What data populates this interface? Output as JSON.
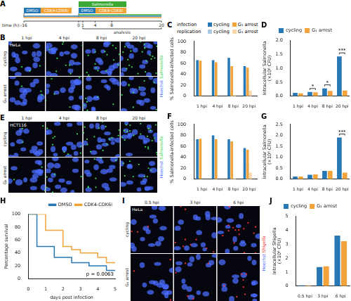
{
  "timeline": {
    "letter": "A",
    "label": "time (h):",
    "ticks": [
      -16,
      0,
      1,
      4,
      8,
      20
    ],
    "treatments": [
      {
        "name": "DMSO",
        "color": "#2878b5"
      },
      {
        "name": "CDK4-CDK6i",
        "color": "#f2a33a"
      }
    ],
    "infection": {
      "name": "Salmonella",
      "color": "#3aaa35"
    },
    "analysis": "analysis"
  },
  "images": [
    {
      "letter": "B",
      "cell_line": "HeLa",
      "columns": [
        "1 hpi",
        "4 hpi",
        "8 hpi",
        "20 hpi"
      ],
      "rows": [
        "cycling",
        "G₁ arrest"
      ],
      "stains": [
        {
          "name": "Hoechst",
          "color": "#4a6cff"
        },
        {
          "name": "Salmonella",
          "color": "#3fd45a"
        }
      ]
    },
    {
      "letter": "E",
      "cell_line": "HCT116",
      "columns": [
        "1 hpi",
        "4 hpi",
        "8 hpi",
        "20 hpi"
      ],
      "rows": [
        "cycling",
        "G₁ arrest"
      ],
      "stains": [
        {
          "name": "Hoechst",
          "color": "#4a6cff"
        },
        {
          "name": "Salmonella",
          "color": "#3fd45a"
        }
      ]
    },
    {
      "letter": "I",
      "cell_line": "HeLa",
      "columns": [
        "0.5 hpi",
        "3 hpi",
        "6 hpi"
      ],
      "rows": [
        "cycling",
        "G₁ arrest"
      ],
      "stains": [
        {
          "name": "Hoechst",
          "color": "#4a6cff"
        },
        {
          "name": "Shigella",
          "color": "#ff3535"
        }
      ]
    }
  ],
  "chart_data": [
    {
      "letter": "C",
      "type": "bar",
      "ylabel": "% Salmonella-infected cells",
      "categories": [
        "1 hpi",
        "4 hpi",
        "8 hpi",
        "20 hpi"
      ],
      "series": [
        {
          "name": "cycling",
          "group": "infection",
          "color": "#2878b5",
          "values": [
            66,
            66,
            70,
            55
          ]
        },
        {
          "name": "G₁ arrest",
          "group": "infection",
          "color": "#f2a33a",
          "values": [
            65,
            62,
            55,
            52
          ]
        },
        {
          "name": "cycling",
          "group": "replication",
          "color": "#a9c9e2",
          "values": [
            0,
            0,
            5,
            25
          ]
        },
        {
          "name": "G₁ arrest",
          "group": "replication",
          "color": "#f8d6a5",
          "values": [
            0,
            0,
            2,
            10
          ]
        }
      ],
      "ylim": [
        0,
        100
      ],
      "yticks": [
        0,
        20,
        40,
        60,
        80,
        100
      ],
      "grid": false,
      "legend": "top"
    },
    {
      "letter": "D",
      "type": "bar",
      "ylabel": [
        "Intracellular Salmonella",
        "(×10⁶ CFU)"
      ],
      "categories": [
        "1 hpi",
        "4 hpi",
        "8 hpi",
        "20 hpi"
      ],
      "series": [
        {
          "name": "cycling",
          "color": "#2878b5",
          "values": [
            0.12,
            0.15,
            0.28,
            1.42
          ]
        },
        {
          "name": "G₁ arrest",
          "color": "#f2a33a",
          "values": [
            0.1,
            0.14,
            0.19,
            0.2
          ]
        }
      ],
      "ylim": [
        0,
        2
      ],
      "yticks": [
        {
          "value": 0,
          "label": "0.0"
        },
        0.5,
        {
          "value": 1,
          "label": "1.0"
        },
        1.5,
        {
          "value": 2,
          "label": "2.0"
        }
      ],
      "annotations": [
        {
          "category": "4 hpi",
          "text": "*"
        },
        {
          "category": "8 hpi",
          "text": "*"
        },
        {
          "category": "20 hpi",
          "text": "***"
        }
      ],
      "grid": false,
      "legend": "top"
    },
    {
      "letter": "F",
      "type": "bar",
      "ylabel": "% Salmonella-infected cells",
      "categories": [
        "1 hpi",
        "4 hpi",
        "8 hpi",
        "20 hpi"
      ],
      "series": [
        {
          "name": "cycling",
          "group": "infection",
          "color": "#2878b5",
          "values": [
            73,
            80,
            73,
            57
          ]
        },
        {
          "name": "G₁ arrest",
          "group": "infection",
          "color": "#f2a33a",
          "values": [
            74,
            73,
            69,
            54
          ]
        },
        {
          "name": "cycling",
          "group": "replication",
          "color": "#a9c9e2",
          "values": [
            0,
            0,
            3,
            30
          ]
        },
        {
          "name": "G₁ arrest",
          "group": "replication",
          "color": "#f8d6a5",
          "values": [
            0,
            0,
            1,
            12
          ]
        }
      ],
      "ylim": [
        0,
        100
      ],
      "yticks": [
        0,
        20,
        40,
        60,
        80,
        100
      ],
      "grid": false
    },
    {
      "letter": "G",
      "type": "bar",
      "ylabel": [
        "Intracellular Salmonella",
        "(×10⁶ CFU)"
      ],
      "categories": [
        "1 hpi",
        "4 hpi",
        "8 hpi",
        "20 hpi"
      ],
      "series": [
        {
          "name": "cycling",
          "color": "#2878b5",
          "values": [
            0.12,
            0.2,
            0.38,
            1.9
          ]
        },
        {
          "name": "G₁ arrest",
          "color": "#f2a33a",
          "values": [
            0.12,
            0.22,
            0.38,
            0.3
          ]
        }
      ],
      "ylim": [
        0,
        2.5
      ],
      "yticks": [
        {
          "value": 0,
          "label": "0.0"
        },
        0.5,
        {
          "value": 1,
          "label": "1.0"
        },
        1.5,
        {
          "value": 2,
          "label": "2.0"
        },
        2.5
      ],
      "annotations": [
        {
          "category": "20 hpi",
          "text": "***"
        }
      ],
      "grid": false
    },
    {
      "letter": "H",
      "type": "line",
      "xlabel": "days post infection",
      "ylabel": "Percentage survival",
      "series": [
        {
          "name": "DMSO",
          "color": "#2878b5",
          "x": [
            0,
            0.5,
            1.5,
            2.5,
            3.5,
            4.5,
            5
          ],
          "values": [
            100,
            50,
            33,
            25,
            20,
            13,
            13
          ]
        },
        {
          "name": "CDK4-CDK6i",
          "color": "#f2a33a",
          "x": [
            0,
            1,
            2,
            2.5,
            3,
            4,
            4.5,
            5
          ],
          "values": [
            100,
            75,
            50,
            45,
            40,
            33,
            25,
            25
          ]
        }
      ],
      "xlim": [
        0,
        5
      ],
      "xticks": [
        0,
        1,
        2,
        3,
        4,
        5
      ],
      "ylim": [
        0,
        100
      ],
      "yticks": [
        0,
        20,
        40,
        60,
        80,
        100
      ],
      "line_style": "step",
      "annotations": [
        {
          "text": "p = 0.0063"
        }
      ],
      "grid": false,
      "legend": "upper right"
    },
    {
      "letter": "J",
      "type": "bar",
      "ylabel": [
        "Intracellular Shigella",
        "(×10⁶ CFU)"
      ],
      "categories": [
        "0.5 hpi",
        "3 hpi",
        "6 hpi"
      ],
      "series": [
        {
          "name": "cycling",
          "color": "#2878b5",
          "values": [
            0.05,
            1.35,
            3.6
          ]
        },
        {
          "name": "G₁ arrest",
          "color": "#f2a33a",
          "values": [
            0.05,
            1.4,
            3.2
          ]
        }
      ],
      "ylim": [
        0,
        5
      ],
      "yticks": [
        0,
        1,
        2,
        3,
        4,
        5
      ],
      "grid": false,
      "legend": "top"
    }
  ]
}
